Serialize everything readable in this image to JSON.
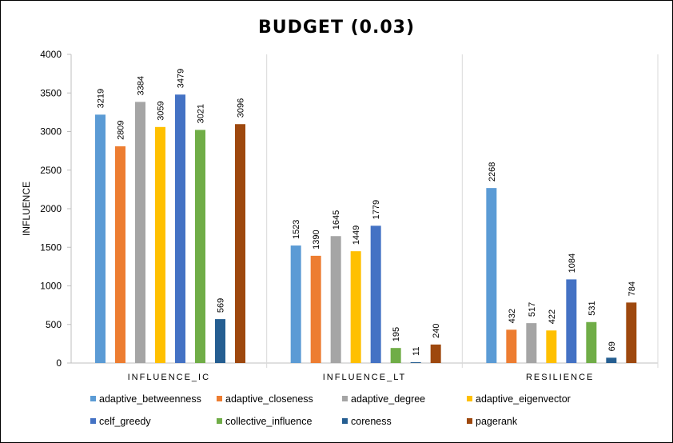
{
  "chart_data": {
    "type": "bar",
    "title": "BUDGET (0.03)",
    "ylabel": "INFLUENCE",
    "xlabel": "",
    "ylim": [
      0,
      4000
    ],
    "yticks": [
      0,
      500,
      1000,
      1500,
      2000,
      2500,
      3000,
      3500,
      4000
    ],
    "grid": "vertical category separators",
    "legend_position": "bottom",
    "categories": [
      "INFLUENCE_IC",
      "INFLUENCE_LT",
      "RESILIENCE"
    ],
    "series": [
      {
        "name": "adaptive_betweenness",
        "color": "#5B9BD5",
        "values": [
          3219,
          1523,
          2268
        ]
      },
      {
        "name": "adaptive_closeness",
        "color": "#ED7D31",
        "values": [
          2809,
          1390,
          432
        ]
      },
      {
        "name": "adaptive_degree",
        "color": "#A5A5A5",
        "values": [
          3384,
          1645,
          517
        ]
      },
      {
        "name": "adaptive_eigenvector",
        "color": "#FFC000",
        "values": [
          3059,
          1449,
          422
        ]
      },
      {
        "name": "celf_greedy",
        "color": "#4472C4",
        "values": [
          3479,
          1779,
          1084
        ]
      },
      {
        "name": "collective_influence",
        "color": "#70AD47",
        "values": [
          3021,
          195,
          531
        ]
      },
      {
        "name": "coreness",
        "color": "#255E91",
        "values": [
          569,
          11,
          69
        ]
      },
      {
        "name": "pagerank",
        "color": "#9E480E",
        "values": [
          3096,
          240,
          784
        ]
      }
    ]
  }
}
